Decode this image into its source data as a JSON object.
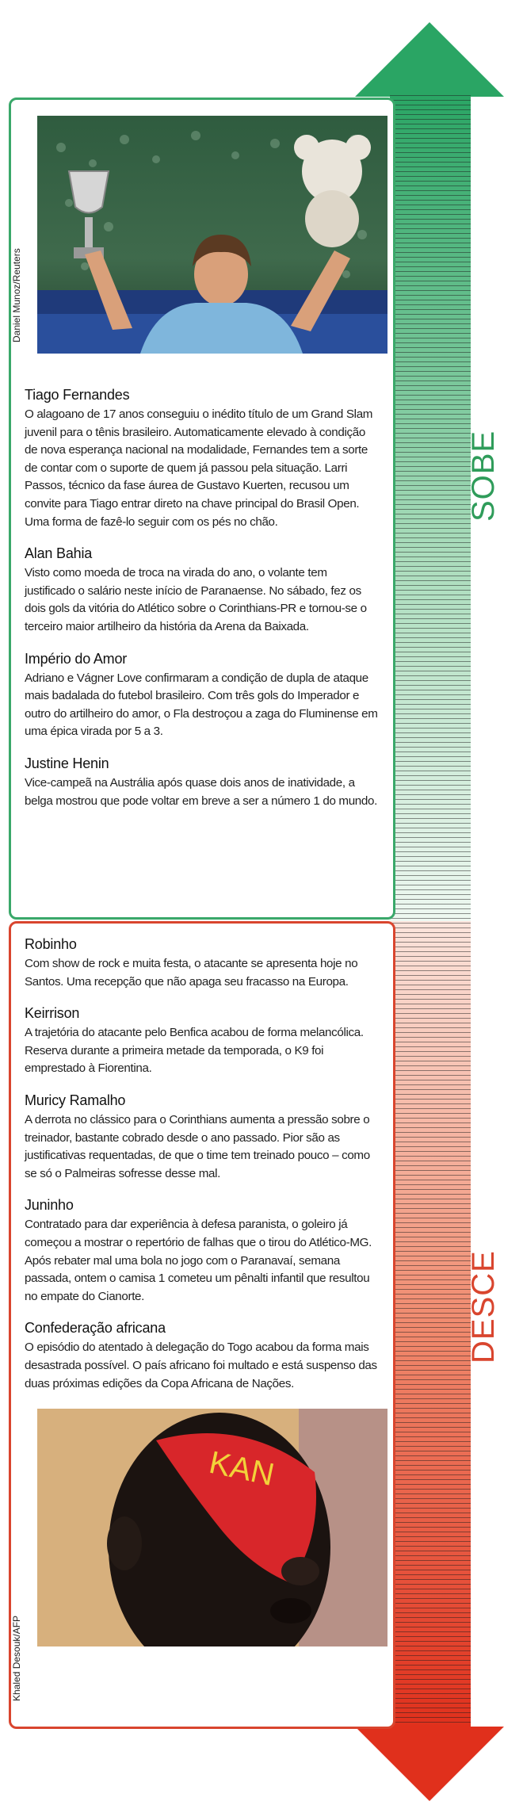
{
  "sobe": {
    "label": "SOBE",
    "color": "#3aa86a",
    "photo_credit": "Daniel Munoz/Reuters",
    "items": [
      {
        "title": "Tiago Fernandes",
        "text": "O alagoano de 17 anos conseguiu o inédito título de um Grand Slam juvenil para o tênis brasileiro. Automaticamente elevado à condição de nova esperança nacional na modalidade, Fernandes tem a sorte de contar com o suporte de quem já passou pela situação. Larri Passos, técnico da fase áurea de Gustavo Kuerten, recusou um convite para Tiago entrar direto na chave principal do Brasil Open. Uma forma de fazê-lo seguir com os pés no chão."
      },
      {
        "title": "Alan Bahia",
        "text": "Visto como moeda de troca na virada do ano, o volante tem justificado o salário neste início de Paranaense. No sábado, fez os dois gols da vitória do Atlético sobre o Corinthians-PR e tornou-se o terceiro maior artilheiro da história da Arena da Baixada."
      },
      {
        "title": "Império do Amor",
        "text": "Adriano e Vágner Love confirmaram a condição de dupla de ataque mais badalada do futebol brasileiro. Com três gols do Imperador e outro do artilheiro do amor, o Fla destroçou a zaga do Fluminense em uma épica virada por 5 a 3."
      },
      {
        "title": "Justine Henin",
        "text": "Vice-campeã na Austrália após quase dois anos de inatividade, a belga mostrou que pode voltar em breve a ser a número 1 do mundo."
      }
    ]
  },
  "desce": {
    "label": "DESCE",
    "color": "#d9452e",
    "photo_credit": "Khaled Desouk/AFP",
    "items": [
      {
        "title": "Robinho",
        "text": "Com show de rock e muita festa, o atacante se apresenta hoje no Santos. Uma recepção que não apaga seu fracasso na Europa."
      },
      {
        "title": "Keirrison",
        "text": "A trajetória do atacante pelo Benfica acabou de forma melancólica. Reserva durante a primeira metade da temporada, o K9 foi emprestado à Fiorentina."
      },
      {
        "title": "Muricy Ramalho",
        "text": "A derrota no clássico para o Corinthians aumenta a pressão sobre o treinador, bastante cobrado desde o ano passado. Pior são as justificativas requentadas, de que o time tem treinado pouco – como se só o Palmeiras sofresse desse mal."
      },
      {
        "title": "Juninho",
        "text": "Contratado para dar experiência à defesa paranista, o goleiro já começou a mostrar o repertório de falhas que o tirou do Atlético-MG. Após rebater mal uma bola no jogo com o Paranavaí, semana passada, ontem o camisa 1 cometeu um pênalti infantil que resultou no empate do Cianorte."
      },
      {
        "title": "Confederação africana",
        "text": "O episódio do atentado à delegação do Togo acabou da forma mais desastrada possível. O país africano foi multado e está suspenso das duas próximas edições da Copa Africana de Nações."
      }
    ]
  }
}
